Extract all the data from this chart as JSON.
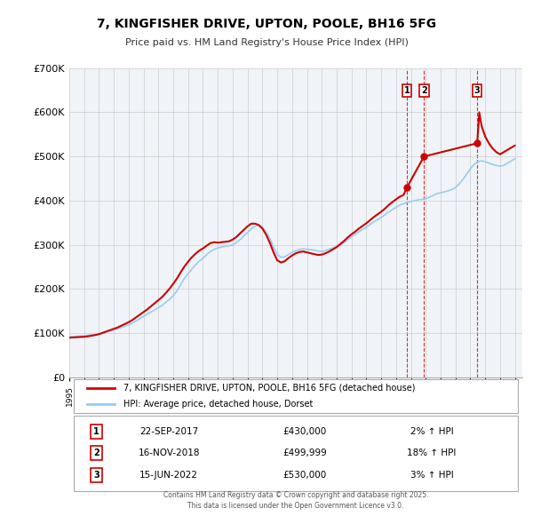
{
  "title": "7, KINGFISHER DRIVE, UPTON, POOLE, BH16 5FG",
  "subtitle": "Price paid vs. HM Land Registry's House Price Index (HPI)",
  "ylabel_ticks": [
    "£0",
    "£100K",
    "£200K",
    "£300K",
    "£400K",
    "£500K",
    "£600K",
    "£700K"
  ],
  "ytick_values": [
    0,
    100000,
    200000,
    300000,
    400000,
    500000,
    600000,
    700000
  ],
  "ylim": [
    0,
    700000
  ],
  "xlim_start": 1995.0,
  "xlim_end": 2025.5,
  "sales": [
    {
      "num": 1,
      "date": "22-SEP-2017",
      "price": 430000,
      "label": "2% ↑ HPI",
      "x": 2017.73
    },
    {
      "num": 2,
      "date": "16-NOV-2018",
      "price": 499999,
      "label": "18% ↑ HPI",
      "x": 2018.88
    },
    {
      "num": 3,
      "date": "15-JUN-2022",
      "price": 530000,
      "label": "3% ↑ HPI",
      "x": 2022.46
    }
  ],
  "legend_line1": "7, KINGFISHER DRIVE, UPTON, POOLE, BH16 5FG (detached house)",
  "legend_line2": "HPI: Average price, detached house, Dorset",
  "footer": "Contains HM Land Registry data © Crown copyright and database right 2025.\nThis data is licensed under the Open Government Licence v3.0.",
  "red_color": "#cc0000",
  "blue_color": "#99ccee",
  "background_color": "#f0f4f8",
  "grid_color": "#cccccc",
  "hpi_x": [
    1995.0,
    1995.25,
    1995.5,
    1995.75,
    1996.0,
    1996.25,
    1996.5,
    1996.75,
    1997.0,
    1997.25,
    1997.5,
    1997.75,
    1998.0,
    1998.25,
    1998.5,
    1998.75,
    1999.0,
    1999.25,
    1999.5,
    1999.75,
    2000.0,
    2000.25,
    2000.5,
    2000.75,
    2001.0,
    2001.25,
    2001.5,
    2001.75,
    2002.0,
    2002.25,
    2002.5,
    2002.75,
    2003.0,
    2003.25,
    2003.5,
    2003.75,
    2004.0,
    2004.25,
    2004.5,
    2004.75,
    2005.0,
    2005.25,
    2005.5,
    2005.75,
    2006.0,
    2006.25,
    2006.5,
    2006.75,
    2007.0,
    2007.25,
    2007.5,
    2007.75,
    2008.0,
    2008.25,
    2008.5,
    2008.75,
    2009.0,
    2009.25,
    2009.5,
    2009.75,
    2010.0,
    2010.25,
    2010.5,
    2010.75,
    2011.0,
    2011.25,
    2011.5,
    2011.75,
    2012.0,
    2012.25,
    2012.5,
    2012.75,
    2013.0,
    2013.25,
    2013.5,
    2013.75,
    2014.0,
    2014.25,
    2014.5,
    2014.75,
    2015.0,
    2015.25,
    2015.5,
    2015.75,
    2016.0,
    2016.25,
    2016.5,
    2016.75,
    2017.0,
    2017.25,
    2017.5,
    2017.75,
    2018.0,
    2018.25,
    2018.5,
    2018.75,
    2019.0,
    2019.25,
    2019.5,
    2019.75,
    2020.0,
    2020.25,
    2020.5,
    2020.75,
    2021.0,
    2021.25,
    2021.5,
    2021.75,
    2022.0,
    2022.25,
    2022.5,
    2022.75,
    2023.0,
    2023.25,
    2023.5,
    2023.75,
    2024.0,
    2024.25,
    2024.5,
    2024.75,
    2025.0
  ],
  "hpi_y": [
    92000,
    92500,
    93000,
    93500,
    94000,
    95000,
    96000,
    97000,
    98000,
    100000,
    103000,
    106000,
    108000,
    110000,
    113000,
    116000,
    119000,
    123000,
    128000,
    133000,
    138000,
    143000,
    148000,
    153000,
    158000,
    163000,
    170000,
    177000,
    185000,
    196000,
    210000,
    224000,
    235000,
    245000,
    255000,
    263000,
    270000,
    278000,
    285000,
    290000,
    293000,
    295000,
    297000,
    298000,
    300000,
    305000,
    312000,
    320000,
    328000,
    336000,
    342000,
    345000,
    340000,
    330000,
    315000,
    295000,
    278000,
    272000,
    273000,
    278000,
    283000,
    287000,
    290000,
    291000,
    290000,
    289000,
    288000,
    286000,
    285000,
    287000,
    290000,
    293000,
    296000,
    300000,
    305000,
    312000,
    318000,
    324000,
    330000,
    335000,
    340000,
    346000,
    352000,
    357000,
    362000,
    368000,
    374000,
    380000,
    385000,
    390000,
    393000,
    396000,
    398000,
    400000,
    402000,
    403000,
    405000,
    408000,
    412000,
    416000,
    418000,
    420000,
    422000,
    425000,
    430000,
    438000,
    448000,
    460000,
    472000,
    482000,
    488000,
    490000,
    488000,
    485000,
    482000,
    480000,
    478000,
    480000,
    485000,
    490000,
    495000
  ],
  "red_x": [
    1995.0,
    1995.25,
    1995.5,
    1995.75,
    1996.0,
    1996.25,
    1996.5,
    1996.75,
    1997.0,
    1997.25,
    1997.5,
    1997.75,
    1998.0,
    1998.25,
    1998.5,
    1998.75,
    1999.0,
    1999.25,
    1999.5,
    1999.75,
    2000.0,
    2000.25,
    2000.5,
    2000.75,
    2001.0,
    2001.25,
    2001.5,
    2001.75,
    2002.0,
    2002.25,
    2002.5,
    2002.75,
    2003.0,
    2003.25,
    2003.5,
    2003.75,
    2004.0,
    2004.25,
    2004.5,
    2004.75,
    2005.0,
    2005.25,
    2005.5,
    2005.75,
    2006.0,
    2006.25,
    2006.5,
    2006.75,
    2007.0,
    2007.25,
    2007.5,
    2007.75,
    2008.0,
    2008.25,
    2008.5,
    2008.75,
    2009.0,
    2009.25,
    2009.5,
    2009.75,
    2010.0,
    2010.25,
    2010.5,
    2010.75,
    2011.0,
    2011.25,
    2011.5,
    2011.75,
    2012.0,
    2012.25,
    2012.5,
    2012.75,
    2013.0,
    2013.25,
    2013.5,
    2013.75,
    2014.0,
    2014.25,
    2014.5,
    2014.75,
    2015.0,
    2015.25,
    2015.5,
    2015.75,
    2016.0,
    2016.25,
    2016.5,
    2016.75,
    2017.0,
    2017.25,
    2017.5,
    2017.73
  ],
  "red_y": [
    90000,
    90500,
    91000,
    91500,
    92000,
    93000,
    94500,
    96000,
    98000,
    101000,
    104000,
    107000,
    110000,
    113000,
    117000,
    121000,
    125000,
    130000,
    136000,
    142000,
    148000,
    154000,
    161000,
    168000,
    175000,
    182000,
    191000,
    201000,
    212000,
    224000,
    238000,
    251000,
    262000,
    272000,
    280000,
    287000,
    292000,
    298000,
    304000,
    306000,
    305000,
    306000,
    307000,
    308000,
    312000,
    318000,
    326000,
    334000,
    342000,
    348000,
    348000,
    345000,
    337000,
    323000,
    305000,
    283000,
    265000,
    260000,
    263000,
    270000,
    276000,
    281000,
    284000,
    285000,
    283000,
    281000,
    279000,
    277000,
    278000,
    281000,
    285000,
    290000,
    295000,
    302000,
    309000,
    317000,
    324000,
    330000,
    337000,
    343000,
    349000,
    356000,
    363000,
    369000,
    375000,
    382000,
    390000,
    397000,
    403000,
    409000,
    413000,
    430000
  ],
  "red_x2": [
    2017.73,
    2018.88,
    2022.46,
    2022.6,
    2022.75,
    2023.0,
    2023.25,
    2023.5,
    2023.75,
    2024.0,
    2024.25,
    2024.5,
    2024.75,
    2025.0
  ],
  "red_y2": [
    430000,
    499999,
    530000,
    600000,
    570000,
    545000,
    530000,
    518000,
    510000,
    505000,
    510000,
    515000,
    520000,
    525000
  ]
}
